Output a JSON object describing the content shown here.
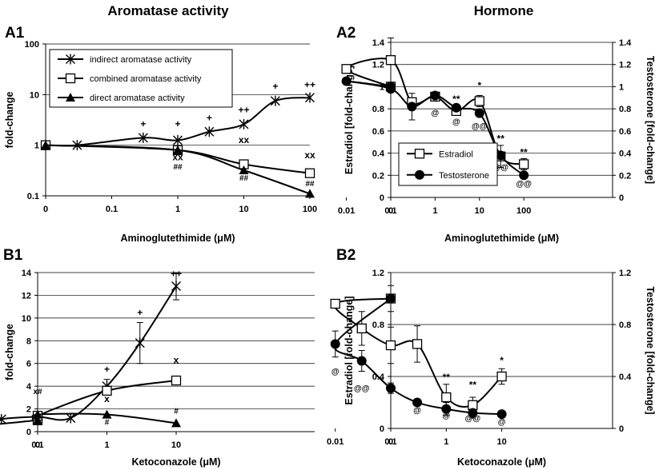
{
  "column_headers": {
    "left": "Aromatase activity",
    "right": "Hormone"
  },
  "chart_data": [
    {
      "id": "A1",
      "panel_label": "A1",
      "type": "line",
      "yscale": "log",
      "ylabel": "fold-change",
      "xlabel": "Aminoglutethimide (μM)",
      "x_ticks": [
        "0",
        "0.1",
        "1",
        "10",
        "100"
      ],
      "y_ticks": [
        "100",
        "10",
        "1",
        "0.1"
      ],
      "ylim": [
        0.1,
        100
      ],
      "legend_position": "top-left",
      "series": [
        {
          "name": "indirect aromatase activity",
          "marker": "star",
          "x": [
            0,
            0.03,
            0.3,
            1,
            3,
            10,
            30,
            100
          ],
          "y": [
            1.0,
            1.0,
            1.4,
            1.25,
            1.85,
            2.6,
            7.5,
            8.7
          ]
        },
        {
          "name": "combined aromatase activity",
          "marker": "open-square",
          "x": [
            0,
            1,
            10,
            100
          ],
          "y": [
            1.0,
            0.8,
            0.42,
            0.28
          ]
        },
        {
          "name": "direct aromatase activity",
          "marker": "filled-triangle",
          "x": [
            0,
            1,
            10,
            100
          ],
          "y": [
            1.0,
            0.8,
            0.32,
            0.11
          ]
        }
      ],
      "annotations": [
        {
          "text": "+",
          "x": 0.3,
          "y": 2.3
        },
        {
          "text": "+",
          "x": 1,
          "y": 2.3
        },
        {
          "text": "+",
          "x": 3,
          "y": 3.0
        },
        {
          "text": "++",
          "x": 10,
          "y": 4.3
        },
        {
          "text": "+",
          "x": 30,
          "y": 12.5
        },
        {
          "text": "++",
          "x": 100,
          "y": 13.5
        },
        {
          "text": "xx",
          "x": 10,
          "y": 1.1
        },
        {
          "text": "xx",
          "x": 1,
          "y": 0.5
        },
        {
          "text": "##",
          "x": 1,
          "y": 0.33
        },
        {
          "text": "##",
          "x": 10,
          "y": 0.2
        },
        {
          "text": "xx",
          "x": 100,
          "y": 0.55
        },
        {
          "text": "##",
          "x": 100,
          "y": 0.155
        }
      ]
    },
    {
      "id": "A2",
      "panel_label": "A2",
      "type": "line",
      "ylabel": "Estradiol  [fold-change]",
      "ylabel_right": "Testosterone  [fold-change]",
      "xlabel": "Aminoglutethimide (μM)",
      "x_ticks": [
        "0",
        "0.01",
        "0.1",
        "1",
        "10",
        "100"
      ],
      "y_ticks": [
        "0",
        "0.2",
        "0.4",
        "0.6",
        "0.8",
        "1",
        "1.2",
        "1.4"
      ],
      "ylim": [
        0,
        1.4
      ],
      "legend_position": "bottom-left",
      "series": [
        {
          "name": "Estradiol",
          "marker": "open-square",
          "x": [
            0,
            0.01,
            0.1,
            0.3,
            1,
            3,
            10,
            30,
            100
          ],
          "y": [
            1.0,
            1.16,
            1.24,
            0.86,
            0.91,
            0.78,
            0.87,
            0.37,
            0.3
          ]
        },
        {
          "name": "Testosterone",
          "marker": "filled-circle",
          "x": [
            0,
            0.01,
            0.1,
            0.3,
            1,
            3,
            10,
            30,
            100
          ],
          "y": [
            1.0,
            1.05,
            0.98,
            0.82,
            0.92,
            0.81,
            0.76,
            0.38,
            0.2
          ]
        }
      ],
      "annotations": [
        {
          "text": "**",
          "x": 3,
          "y": 0.86
        },
        {
          "text": "*",
          "x": 10,
          "y": 0.98
        },
        {
          "text": "**",
          "x": 30,
          "y": 0.5
        },
        {
          "text": "**",
          "x": 100,
          "y": 0.38
        },
        {
          "text": "@",
          "x": 1,
          "y": 0.74
        },
        {
          "text": "@",
          "x": 3,
          "y": 0.66
        },
        {
          "text": "@@",
          "x": 10,
          "y": 0.62
        },
        {
          "text": "@@",
          "x": 30,
          "y": 0.25
        },
        {
          "text": "@@",
          "x": 100,
          "y": 0.1
        }
      ]
    },
    {
      "id": "B1",
      "panel_label": "B1",
      "type": "line",
      "ylabel": "fold-change",
      "xlabel": "Ketoconazole (μM)",
      "x_ticks": [
        "0",
        "0.01",
        "0.1",
        "1",
        "10"
      ],
      "y_ticks": [
        "0",
        "2",
        "4",
        "6",
        "8",
        "10",
        "12",
        "14"
      ],
      "ylim": [
        0,
        14
      ],
      "series": [
        {
          "name": "indirect aromatase activity",
          "marker": "star",
          "x": [
            0,
            0.01,
            0.03,
            0.1,
            0.3,
            1,
            3,
            10
          ],
          "y": [
            1.0,
            0.45,
            1.1,
            1.3,
            1.2,
            4.0,
            7.8,
            12.8
          ]
        },
        {
          "name": "combined aromatase activity",
          "marker": "open-square",
          "x": [
            0,
            0.1,
            1,
            10
          ],
          "y": [
            1.0,
            1.4,
            3.6,
            4.5
          ]
        },
        {
          "name": "direct aromatase activity",
          "marker": "filled-triangle",
          "x": [
            0,
            0.1,
            1,
            10
          ],
          "y": [
            1.0,
            1.5,
            1.5,
            0.75
          ]
        }
      ],
      "annotations": [
        {
          "text": "x#",
          "x": 0.1,
          "y": 3.3
        },
        {
          "text": "+",
          "x": 1,
          "y": 5.2
        },
        {
          "text": "x",
          "x": 1,
          "y": 2.6
        },
        {
          "text": "#",
          "x": 1,
          "y": 0.6
        },
        {
          "text": "+",
          "x": 3,
          "y": 10.2
        },
        {
          "text": "++",
          "x": 10,
          "y": 13.6
        },
        {
          "text": "x",
          "x": 10,
          "y": 6.0
        },
        {
          "text": "#",
          "x": 10,
          "y": 1.6
        }
      ]
    },
    {
      "id": "B2",
      "panel_label": "B2",
      "type": "line",
      "ylabel": "Estradiol  [fold-change]",
      "ylabel_right": "Testosterone  [fold-change]",
      "xlabel": "Ketoconazole (μM)",
      "x_ticks": [
        "0",
        "0.01",
        "0.1",
        "1",
        "10"
      ],
      "y_ticks": [
        "0",
        "0.4",
        "0.8",
        "1.2"
      ],
      "ylim": [
        0,
        1.2
      ],
      "series": [
        {
          "name": "Estradiol",
          "marker": "open-square",
          "x": [
            0,
            0.01,
            0.03,
            0.1,
            0.3,
            1,
            3,
            10
          ],
          "y": [
            1.0,
            0.96,
            0.77,
            0.64,
            0.65,
            0.24,
            0.18,
            0.4
          ]
        },
        {
          "name": "Testosterone",
          "marker": "filled-circle",
          "x": [
            0,
            0.01,
            0.03,
            0.1,
            0.3,
            1,
            3,
            10
          ],
          "y": [
            1.0,
            0.65,
            0.52,
            0.31,
            0.2,
            0.15,
            0.12,
            0.11
          ]
        }
      ],
      "annotations": [
        {
          "text": "@",
          "x": 0.01,
          "y": 0.42
        },
        {
          "text": "@@",
          "x": 0.03,
          "y": 0.29
        },
        {
          "text": "@",
          "x": 0.3,
          "y": 0.12
        },
        {
          "text": "@",
          "x": 1,
          "y": 0.08
        },
        {
          "text": "@@",
          "x": 3,
          "y": 0.06
        },
        {
          "text": "@",
          "x": 10,
          "y": 0.03
        },
        {
          "text": "**",
          "x": 1,
          "y": 0.37
        },
        {
          "text": "**",
          "x": 3,
          "y": 0.31
        },
        {
          "text": "*",
          "x": 10,
          "y": 0.5
        }
      ]
    }
  ]
}
